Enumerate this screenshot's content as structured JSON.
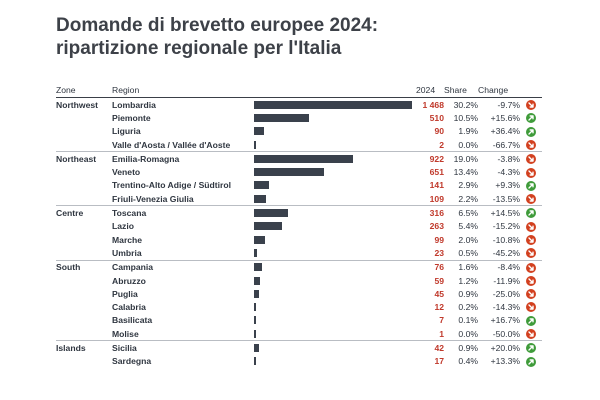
{
  "title_line1": "Domande di brevetto europee 2024:",
  "title_line2": "ripartizione regionale per l'Italia",
  "headers": {
    "zone": "Zone",
    "region": "Region",
    "year": "2024",
    "share": "Share",
    "change": "Change"
  },
  "colors": {
    "bar": "#3a414c",
    "value": "#c0392b",
    "up": "#3f9b3a",
    "down": "#d2401f"
  },
  "chart_data": {
    "type": "table",
    "title": "Domande di brevetto europee 2024: ripartizione regionale per l'Italia",
    "rows": [
      {
        "zone": "Northwest",
        "region": "Lombardia",
        "value": 1468,
        "value_label": "1 468",
        "share": "30.2%",
        "change": "-9.7%",
        "dir": "down"
      },
      {
        "zone": "",
        "region": "Piemonte",
        "value": 510,
        "value_label": "510",
        "share": "10.5%",
        "change": "+15.6%",
        "dir": "up"
      },
      {
        "zone": "",
        "region": "Liguria",
        "value": 90,
        "value_label": "90",
        "share": "1.9%",
        "change": "+36.4%",
        "dir": "up"
      },
      {
        "zone": "",
        "region": "Valle d'Aosta / Vallée d'Aoste",
        "value": 2,
        "value_label": "2",
        "share": "0.0%",
        "change": "-66.7%",
        "dir": "down"
      },
      {
        "zone": "Northeast",
        "region": "Emilia-Romagna",
        "value": 922,
        "value_label": "922",
        "share": "19.0%",
        "change": "-3.8%",
        "dir": "down"
      },
      {
        "zone": "",
        "region": "Veneto",
        "value": 651,
        "value_label": "651",
        "share": "13.4%",
        "change": "-4.3%",
        "dir": "down"
      },
      {
        "zone": "",
        "region": "Trentino-Alto Adige / Südtirol",
        "value": 141,
        "value_label": "141",
        "share": "2.9%",
        "change": "+9.3%",
        "dir": "up"
      },
      {
        "zone": "",
        "region": "Friuli-Venezia Giulia",
        "value": 109,
        "value_label": "109",
        "share": "2.2%",
        "change": "-13.5%",
        "dir": "down"
      },
      {
        "zone": "Centre",
        "region": "Toscana",
        "value": 316,
        "value_label": "316",
        "share": "6.5%",
        "change": "+14.5%",
        "dir": "up"
      },
      {
        "zone": "",
        "region": "Lazio",
        "value": 263,
        "value_label": "263",
        "share": "5.4%",
        "change": "-15.2%",
        "dir": "down"
      },
      {
        "zone": "",
        "region": "Marche",
        "value": 99,
        "value_label": "99",
        "share": "2.0%",
        "change": "-10.8%",
        "dir": "down"
      },
      {
        "zone": "",
        "region": "Umbria",
        "value": 23,
        "value_label": "23",
        "share": "0.5%",
        "change": "-45.2%",
        "dir": "down"
      },
      {
        "zone": "South",
        "region": "Campania",
        "value": 76,
        "value_label": "76",
        "share": "1.6%",
        "change": "-8.4%",
        "dir": "down"
      },
      {
        "zone": "",
        "region": "Abruzzo",
        "value": 59,
        "value_label": "59",
        "share": "1.2%",
        "change": "-11.9%",
        "dir": "down"
      },
      {
        "zone": "",
        "region": "Puglia",
        "value": 45,
        "value_label": "45",
        "share": "0.9%",
        "change": "-25.0%",
        "dir": "down"
      },
      {
        "zone": "",
        "region": "Calabria",
        "value": 12,
        "value_label": "12",
        "share": "0.2%",
        "change": "-14.3%",
        "dir": "down"
      },
      {
        "zone": "",
        "region": "Basilicata",
        "value": 7,
        "value_label": "7",
        "share": "0.1%",
        "change": "+16.7%",
        "dir": "up"
      },
      {
        "zone": "",
        "region": "Molise",
        "value": 1,
        "value_label": "1",
        "share": "0.0%",
        "change": "-50.0%",
        "dir": "down"
      },
      {
        "zone": "Islands",
        "region": "Sicilia",
        "value": 42,
        "value_label": "42",
        "share": "0.9%",
        "change": "+20.0%",
        "dir": "up"
      },
      {
        "zone": "",
        "region": "Sardegna",
        "value": 17,
        "value_label": "17",
        "share": "0.4%",
        "change": "+13.3%",
        "dir": "up"
      }
    ],
    "value_max": 1468
  }
}
